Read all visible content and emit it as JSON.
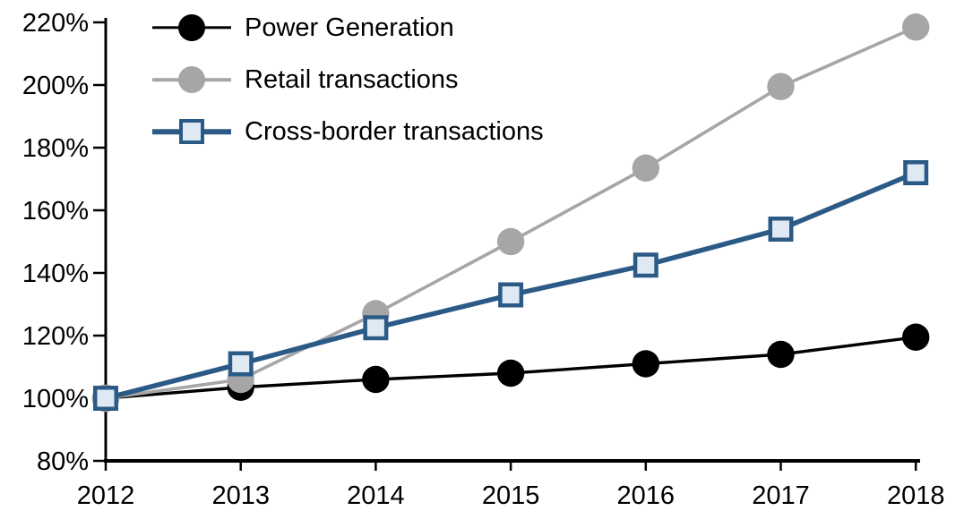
{
  "chart_data": {
    "type": "line",
    "title": "",
    "xlabel": "",
    "ylabel": "",
    "background": "#FFFFFF",
    "axis_color": "#000000",
    "grid": false,
    "legend_position": "top-left-inside",
    "ylim": [
      80,
      220
    ],
    "y_unit": "%",
    "categories": [
      "2012",
      "2013",
      "2014",
      "2015",
      "2016",
      "2017",
      "2018"
    ],
    "y_ticks": [
      {
        "value": 80,
        "label": "80%"
      },
      {
        "value": 100,
        "label": "100%"
      },
      {
        "value": 120,
        "label": "120%"
      },
      {
        "value": 140,
        "label": "140%"
      },
      {
        "value": 160,
        "label": "160%"
      },
      {
        "value": 180,
        "label": "180%"
      },
      {
        "value": 200,
        "label": "200%"
      },
      {
        "value": 220,
        "label": "220%"
      }
    ],
    "series": [
      {
        "name": "Power Generation",
        "color": "#000000",
        "marker": "circle",
        "marker_fill": "#000000",
        "line_width": 3.4,
        "values": [
          100,
          103.5,
          106,
          108,
          111,
          114,
          119.5
        ]
      },
      {
        "name": "Retail transactions",
        "color": "#A6A6A6",
        "marker": "circle",
        "marker_fill": "#A6A6A6",
        "line_width": 3.6,
        "values": [
          100,
          106,
          127,
          150,
          173.5,
          199.5,
          218.5
        ]
      },
      {
        "name": "Cross-border transactions",
        "color": "#2B5A87",
        "marker": "square",
        "marker_fill": "#DEE9F4",
        "line_width": 5.5,
        "values": [
          100,
          111,
          122.5,
          133,
          142.5,
          154,
          172
        ]
      }
    ]
  }
}
